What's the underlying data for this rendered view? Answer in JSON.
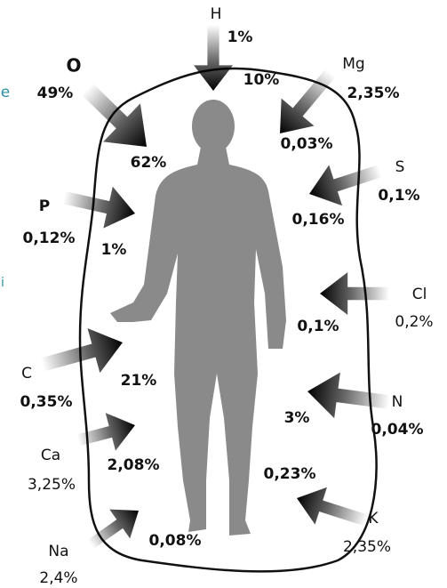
{
  "fragments": [
    "e",
    "i"
  ],
  "elements": [
    {
      "symbol": "H",
      "environment": "1%",
      "body": "10%"
    },
    {
      "symbol": "O",
      "environment": "49%",
      "body": "62%"
    },
    {
      "symbol": "Mg",
      "environment": "2,35%",
      "body": "0,03%"
    },
    {
      "symbol": "S",
      "environment": "0,1%",
      "body": "0,16%"
    },
    {
      "symbol": "P",
      "environment": "0,12%",
      "body": "1%"
    },
    {
      "symbol": "Cl",
      "environment": "0,2%",
      "body": "0,1%"
    },
    {
      "symbol": "C",
      "environment": "0,35%",
      "body": "21%"
    },
    {
      "symbol": "N",
      "environment": "0,04%",
      "body": "3%"
    },
    {
      "symbol": "Ca",
      "environment": "3,25%",
      "body": "2,08%"
    },
    {
      "symbol": "K",
      "environment": "2,35%",
      "body": "0,23%"
    },
    {
      "symbol": "Na",
      "environment": "2,4%",
      "body": "0,08%"
    }
  ]
}
